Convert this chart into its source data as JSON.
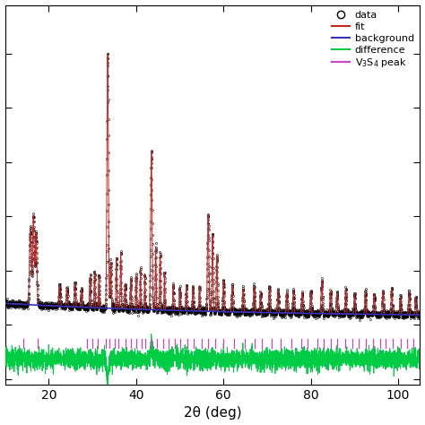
{
  "title": "",
  "xlabel": "2θ (deg)",
  "xlim": [
    10,
    105
  ],
  "background_color": "#ffffff",
  "fit_color": "#cc2222",
  "background_line_color": "#3333bb",
  "difference_color": "#00cc44",
  "data_color": "#000000",
  "peak_color": "#cc44cc",
  "figsize": [
    4.74,
    4.74
  ],
  "dpi": 100,
  "v3s4_peaks": [
    14.2,
    17.5,
    28.8,
    30.0,
    31.2,
    33.0,
    33.9,
    35.1,
    36.0,
    37.5,
    38.8,
    40.0,
    41.2,
    42.2,
    43.5,
    44.8,
    46.2,
    47.5,
    48.8,
    50.2,
    51.8,
    53.2,
    55.0,
    56.5,
    58.2,
    60.0,
    62.5,
    64.8,
    67.2,
    68.8,
    71.0,
    73.2,
    75.5,
    77.8,
    79.2,
    81.5,
    83.0,
    84.5,
    86.0,
    87.8,
    89.5,
    91.0,
    92.5,
    94.2,
    95.8,
    97.2,
    98.8,
    100.5,
    102.0,
    103.5
  ]
}
